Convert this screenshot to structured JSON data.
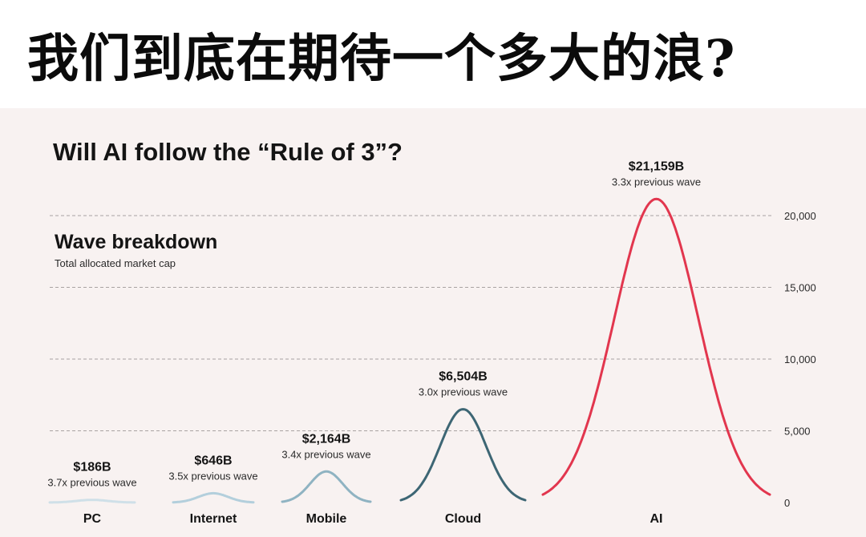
{
  "headline": "我们到底在期待一个多大的浪?",
  "chart_data": {
    "type": "area",
    "title": "Will AI follow the “Rule of 3”?",
    "subtitle": "Wave breakdown",
    "caption": "Total allocated market cap",
    "categories": [
      "PC",
      "Internet",
      "Mobile",
      "Cloud",
      "AI"
    ],
    "values": [
      186,
      646,
      2164,
      6504,
      21159
    ],
    "value_labels": [
      "$186B",
      "$646B",
      "$2,164B",
      "$6,504B",
      "$21,159B"
    ],
    "multiplier_labels": [
      "3.7x previous wave",
      "3.5x previous wave",
      "3.4x previous wave",
      "3.0x previous wave",
      "3.3x previous wave"
    ],
    "colors": [
      "#cfe0e8",
      "#b3cfdc",
      "#8fb3c2",
      "#3d6674",
      "#e2364e"
    ],
    "ylim": [
      0,
      22000
    ],
    "yticks": [
      0,
      5000,
      10000,
      15000,
      20000
    ],
    "ytick_labels": [
      "0",
      "5,000",
      "10,000",
      "15,000",
      "20,000"
    ],
    "grid": true,
    "y_axis_position": "right"
  }
}
